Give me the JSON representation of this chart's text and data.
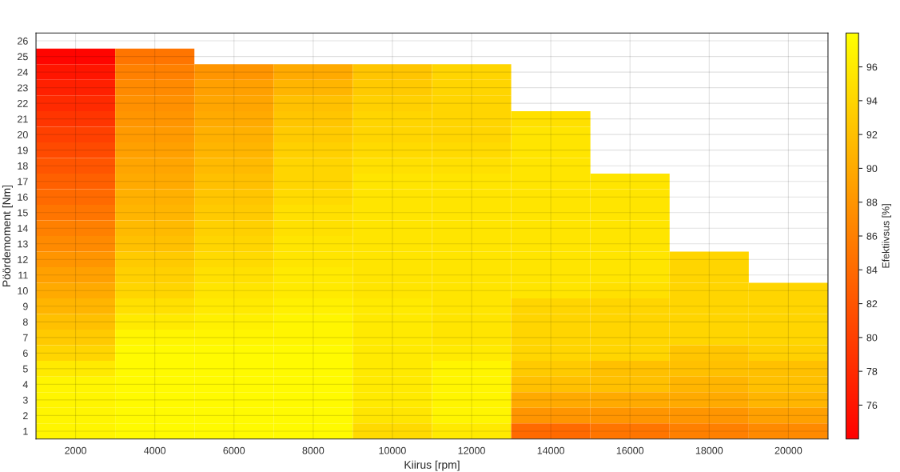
{
  "chart_data": {
    "type": "heatmap",
    "xlabel": "Kiirus [rpm]",
    "ylabel": "Pöördemoment [Nm]",
    "clabel": "Efektiivsus [%]",
    "categories": [
      "2000",
      "4000",
      "6000",
      "8000",
      "10000",
      "12000",
      "14000",
      "16000",
      "18000",
      "20000"
    ],
    "y_categories": [
      "26",
      "25",
      "24",
      "23",
      "22",
      "21",
      "20",
      "19",
      "18",
      "17",
      "16",
      "15",
      "14",
      "13",
      "12",
      "11",
      "10",
      "9",
      "8",
      "7",
      "6",
      "5",
      "4",
      "3",
      "2",
      "1"
    ],
    "cells": [
      [
        null,
        null,
        null,
        null,
        null,
        null,
        null,
        null,
        null,
        null
      ],
      [
        74.5,
        85,
        null,
        null,
        null,
        null,
        null,
        null,
        null,
        null
      ],
      [
        76,
        86,
        88,
        90,
        92.5,
        94,
        null,
        null,
        null,
        null
      ],
      [
        77,
        87,
        89,
        91,
        93,
        94,
        null,
        null,
        null,
        null
      ],
      [
        78,
        87.5,
        89.5,
        92,
        93.5,
        94,
        null,
        null,
        null,
        null
      ],
      [
        79,
        88,
        90,
        92.5,
        94,
        94,
        95,
        null,
        null,
        null
      ],
      [
        80,
        88.5,
        90.5,
        93,
        94,
        94,
        95.5,
        null,
        null,
        null
      ],
      [
        81,
        89,
        91,
        93.5,
        94.5,
        94.5,
        95.5,
        null,
        null,
        null
      ],
      [
        82,
        89.5,
        91.5,
        94,
        95,
        95,
        95.5,
        null,
        null,
        null
      ],
      [
        83,
        90,
        92,
        94,
        95.5,
        95.5,
        95.5,
        95.5,
        null,
        null
      ],
      [
        84,
        90.5,
        92.5,
        94.5,
        95.5,
        95.5,
        95.5,
        95.5,
        null,
        null
      ],
      [
        85,
        91,
        93,
        95,
        95.5,
        95.5,
        95.5,
        95.5,
        null,
        null
      ],
      [
        86,
        91.5,
        93.5,
        95,
        95.5,
        95.5,
        95.5,
        95.5,
        null,
        null
      ],
      [
        87,
        92,
        94,
        95.5,
        95.5,
        95.5,
        95.5,
        95.5,
        null,
        null
      ],
      [
        88,
        93,
        94.5,
        95.5,
        95.5,
        95.5,
        95.5,
        95.5,
        94,
        null
      ],
      [
        89,
        93.5,
        95,
        96,
        95.5,
        95.5,
        95.5,
        95.5,
        94,
        null
      ],
      [
        90,
        94,
        95.5,
        96,
        95.5,
        95.5,
        95.5,
        95,
        94,
        94
      ],
      [
        91,
        95,
        96,
        96.5,
        96,
        95.5,
        94,
        94,
        94,
        94
      ],
      [
        92,
        96,
        96.5,
        97,
        96,
        95.5,
        94,
        94,
        94,
        94
      ],
      [
        93,
        97,
        97,
        97,
        96,
        95.5,
        94,
        94,
        94,
        94
      ],
      [
        94,
        97.5,
        97.5,
        97.5,
        96,
        96,
        94,
        94,
        92.5,
        93.5
      ],
      [
        96,
        97.5,
        97.5,
        97.5,
        96,
        97,
        93,
        92,
        92,
        92
      ],
      [
        97,
        97.5,
        97.5,
        97.5,
        96,
        97,
        92,
        92,
        91,
        92
      ],
      [
        97,
        97.5,
        97.5,
        97.5,
        96,
        97,
        90,
        90,
        90,
        91
      ],
      [
        97,
        97.5,
        97.5,
        97.5,
        95.5,
        97,
        88,
        88,
        88,
        89
      ],
      [
        97,
        97.5,
        97.5,
        97.5,
        94.5,
        96,
        84,
        85,
        86,
        87
      ]
    ],
    "clim": [
      74,
      98
    ],
    "cticks": [
      76,
      78,
      80,
      82,
      84,
      86,
      88,
      90,
      92,
      94,
      96
    ],
    "grid": true
  }
}
